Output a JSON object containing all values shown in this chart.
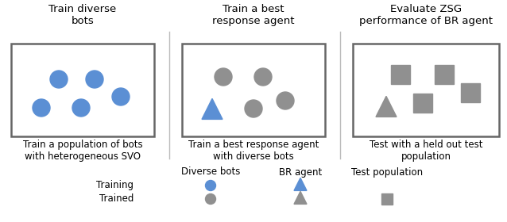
{
  "blue": "#5B8FD4",
  "gray": "#909090",
  "bg": "#ffffff",
  "panel_titles": [
    "Train diverse\nbots",
    "Train a best\nresponse agent",
    "Evaluate ZSG\nperformance of BR agent"
  ],
  "panel_subtitles": [
    "Train a population of bots\nwith heterogeneous SVO",
    "Train a best response agent\nwith diverse bots",
    "Test with a held out test\npopulation"
  ],
  "legend_col_labels": [
    "Diverse bots",
    "BR agent",
    "Test population"
  ],
  "legend_row_labels": [
    "Training",
    "Trained"
  ],
  "font_size": 8.5,
  "title_font_size": 9.5
}
